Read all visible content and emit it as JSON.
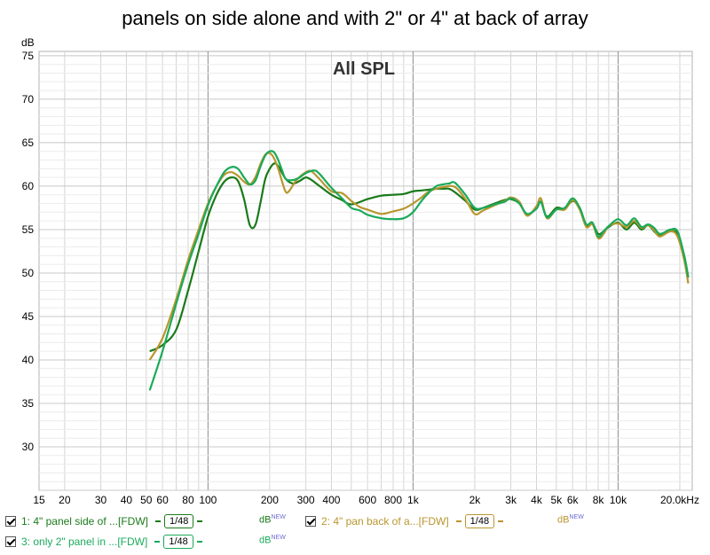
{
  "title": "panels on side alone and with 2\" or 4\" at back of array",
  "chart_data": {
    "type": "line",
    "inner_label": "All SPL",
    "ylabel": "dB",
    "xlabel": "",
    "x_scale": "log",
    "xlim": [
      15,
      23000
    ],
    "ylim": [
      25,
      75.5
    ],
    "y_ticks": [
      "75",
      "70",
      "65",
      "60",
      "55",
      "50",
      "45",
      "40",
      "35",
      "30"
    ],
    "x_ticks": [
      {
        "v": 15,
        "label": "15"
      },
      {
        "v": 20,
        "label": "20"
      },
      {
        "v": 30,
        "label": "30"
      },
      {
        "v": 40,
        "label": "40"
      },
      {
        "v": 50,
        "label": "50"
      },
      {
        "v": 60,
        "label": "60"
      },
      {
        "v": 80,
        "label": "80"
      },
      {
        "v": 100,
        "label": "100"
      },
      {
        "v": 200,
        "label": "200"
      },
      {
        "v": 300,
        "label": "300"
      },
      {
        "v": 400,
        "label": "400"
      },
      {
        "v": 600,
        "label": "600"
      },
      {
        "v": 800,
        "label": "800"
      },
      {
        "v": 1000,
        "label": "1k"
      },
      {
        "v": 2000,
        "label": "2k"
      },
      {
        "v": 3000,
        "label": "3k"
      },
      {
        "v": 4000,
        "label": "4k"
      },
      {
        "v": 5000,
        "label": "5k"
      },
      {
        "v": 6000,
        "label": "6k"
      },
      {
        "v": 8000,
        "label": "8k"
      },
      {
        "v": 10000,
        "label": "10k"
      },
      {
        "v": 20000,
        "label": "20.0kHz"
      }
    ],
    "series": [
      {
        "name": "1: 4\" panel side of ...[FDW]",
        "color": "#1a7a1a",
        "points": [
          [
            52,
            41
          ],
          [
            60,
            41.7
          ],
          [
            70,
            43.5
          ],
          [
            80,
            48
          ],
          [
            90,
            52.5
          ],
          [
            100,
            56.5
          ],
          [
            110,
            59
          ],
          [
            120,
            60.5
          ],
          [
            130,
            61
          ],
          [
            140,
            60.6
          ],
          [
            150,
            58.5
          ],
          [
            160,
            55.5
          ],
          [
            170,
            55.5
          ],
          [
            180,
            58
          ],
          [
            190,
            60.8
          ],
          [
            200,
            62
          ],
          [
            210,
            62.6
          ],
          [
            220,
            62.3
          ],
          [
            240,
            60.8
          ],
          [
            260,
            60.3
          ],
          [
            280,
            60.6
          ],
          [
            300,
            61
          ],
          [
            320,
            60.7
          ],
          [
            350,
            60
          ],
          [
            400,
            59
          ],
          [
            450,
            58.4
          ],
          [
            500,
            57.9
          ],
          [
            600,
            58.5
          ],
          [
            700,
            58.9
          ],
          [
            800,
            59
          ],
          [
            900,
            59.1
          ],
          [
            1000,
            59.4
          ],
          [
            1100,
            59.5
          ],
          [
            1200,
            59.6
          ],
          [
            1300,
            59.7
          ],
          [
            1400,
            59.7
          ],
          [
            1500,
            59.7
          ],
          [
            1600,
            59.3
          ],
          [
            1800,
            58.3
          ],
          [
            2000,
            57.3
          ],
          [
            2200,
            57.5
          ],
          [
            2500,
            58
          ],
          [
            2800,
            58.4
          ],
          [
            3000,
            58.5
          ],
          [
            3300,
            58
          ],
          [
            3600,
            56.7
          ],
          [
            4000,
            57.5
          ],
          [
            4200,
            58.2
          ],
          [
            4500,
            56.5
          ],
          [
            5000,
            57.5
          ],
          [
            5500,
            57.4
          ],
          [
            6000,
            58.3
          ],
          [
            6500,
            57.5
          ],
          [
            7000,
            55.5
          ],
          [
            7500,
            55.7
          ],
          [
            8000,
            54.5
          ],
          [
            8500,
            54.8
          ],
          [
            9000,
            55.3
          ],
          [
            10000,
            55.8
          ],
          [
            11000,
            55
          ],
          [
            12000,
            55.8
          ],
          [
            13000,
            55
          ],
          [
            14000,
            55.5
          ],
          [
            15000,
            54.8
          ],
          [
            16000,
            54.3
          ],
          [
            18000,
            54.8
          ],
          [
            19500,
            54.5
          ],
          [
            21000,
            52
          ],
          [
            22000,
            49.5
          ]
        ]
      },
      {
        "name": "2: 4\" pan back of a...[FDW]",
        "color": "#b8962e",
        "points": [
          [
            52,
            40
          ],
          [
            60,
            42.5
          ],
          [
            70,
            47
          ],
          [
            80,
            51.5
          ],
          [
            90,
            55
          ],
          [
            100,
            58
          ],
          [
            110,
            60
          ],
          [
            120,
            61.3
          ],
          [
            130,
            61.6
          ],
          [
            140,
            61.2
          ],
          [
            150,
            60.5
          ],
          [
            160,
            60.2
          ],
          [
            170,
            61
          ],
          [
            180,
            62.5
          ],
          [
            190,
            63.6
          ],
          [
            200,
            63.8
          ],
          [
            210,
            63.2
          ],
          [
            220,
            62
          ],
          [
            230,
            60.5
          ],
          [
            240,
            59.3
          ],
          [
            250,
            59.5
          ],
          [
            270,
            60.7
          ],
          [
            300,
            61.6
          ],
          [
            320,
            61.7
          ],
          [
            350,
            60.8
          ],
          [
            400,
            59.4
          ],
          [
            450,
            59.2
          ],
          [
            500,
            58.3
          ],
          [
            550,
            57.6
          ],
          [
            600,
            57.3
          ],
          [
            700,
            56.8
          ],
          [
            800,
            57.1
          ],
          [
            900,
            57.4
          ],
          [
            1000,
            58
          ],
          [
            1100,
            58.7
          ],
          [
            1200,
            59.4
          ],
          [
            1400,
            59.9
          ],
          [
            1600,
            59.9
          ],
          [
            1800,
            58.5
          ],
          [
            2000,
            56.8
          ],
          [
            2200,
            57.2
          ],
          [
            2500,
            57.8
          ],
          [
            2800,
            58.3
          ],
          [
            3000,
            58.7
          ],
          [
            3300,
            58.2
          ],
          [
            3600,
            56.6
          ],
          [
            4000,
            57.7
          ],
          [
            4200,
            58.6
          ],
          [
            4500,
            56.3
          ],
          [
            5000,
            57.3
          ],
          [
            5500,
            57.3
          ],
          [
            6000,
            58.4
          ],
          [
            6500,
            57.3
          ],
          [
            7000,
            55.3
          ],
          [
            7500,
            55.6
          ],
          [
            8000,
            54
          ],
          [
            8500,
            54.5
          ],
          [
            9000,
            55.4
          ],
          [
            10000,
            55.7
          ],
          [
            11000,
            55.3
          ],
          [
            12000,
            56
          ],
          [
            13000,
            55.2
          ],
          [
            14000,
            55.5
          ],
          [
            15000,
            54.9
          ],
          [
            16000,
            54.2
          ],
          [
            18000,
            54.8
          ],
          [
            19500,
            54.2
          ],
          [
            21000,
            51.5
          ],
          [
            22000,
            48.8
          ]
        ]
      },
      {
        "name": "3: only 2\" panel in ...[FDW]",
        "color": "#1aaa5a",
        "points": [
          [
            52,
            36.5
          ],
          [
            60,
            41
          ],
          [
            70,
            46.5
          ],
          [
            80,
            51
          ],
          [
            90,
            54.5
          ],
          [
            100,
            57.8
          ],
          [
            110,
            60
          ],
          [
            120,
            61.6
          ],
          [
            130,
            62.2
          ],
          [
            140,
            62
          ],
          [
            150,
            61
          ],
          [
            160,
            60.2
          ],
          [
            170,
            60.6
          ],
          [
            180,
            62.2
          ],
          [
            190,
            63.5
          ],
          [
            200,
            64
          ],
          [
            210,
            63.9
          ],
          [
            220,
            63
          ],
          [
            230,
            61.8
          ],
          [
            240,
            60.8
          ],
          [
            260,
            60.7
          ],
          [
            280,
            61
          ],
          [
            300,
            61.5
          ],
          [
            330,
            61.8
          ],
          [
            350,
            61.4
          ],
          [
            400,
            59.8
          ],
          [
            450,
            58.6
          ],
          [
            500,
            57.5
          ],
          [
            550,
            57.2
          ],
          [
            600,
            56.7
          ],
          [
            700,
            56.3
          ],
          [
            800,
            56.2
          ],
          [
            900,
            56.3
          ],
          [
            1000,
            57
          ],
          [
            1100,
            58.3
          ],
          [
            1200,
            59.3
          ],
          [
            1300,
            60
          ],
          [
            1400,
            60.2
          ],
          [
            1500,
            60.3
          ],
          [
            1600,
            60.4
          ],
          [
            1800,
            59
          ],
          [
            2000,
            57.5
          ],
          [
            2200,
            57.5
          ],
          [
            2500,
            57.9
          ],
          [
            2800,
            58.2
          ],
          [
            3000,
            58.6
          ],
          [
            3300,
            58
          ],
          [
            3600,
            56.8
          ],
          [
            4000,
            57.4
          ],
          [
            4200,
            58.2
          ],
          [
            4500,
            56.4
          ],
          [
            5000,
            57.3
          ],
          [
            5500,
            57.5
          ],
          [
            6000,
            58.6
          ],
          [
            6500,
            57.5
          ],
          [
            7000,
            55.6
          ],
          [
            7500,
            55.8
          ],
          [
            8000,
            54.2
          ],
          [
            8500,
            54.8
          ],
          [
            9000,
            55.4
          ],
          [
            10000,
            56.2
          ],
          [
            11000,
            55.5
          ],
          [
            12000,
            56.3
          ],
          [
            13000,
            55.3
          ],
          [
            14000,
            55.6
          ],
          [
            15000,
            55.2
          ],
          [
            16000,
            54.5
          ],
          [
            18000,
            55
          ],
          [
            19500,
            54.8
          ],
          [
            21000,
            52
          ],
          [
            22000,
            49.5
          ]
        ]
      }
    ]
  },
  "legend": {
    "series1": {
      "label": "1: 4\" panel side of ...[FDW]",
      "smoothing": "1/48",
      "unit": "dB",
      "badge": "NEW"
    },
    "series2": {
      "label": "2: 4\" pan back of a...[FDW]",
      "smoothing": "1/48",
      "unit": "dB",
      "badge": "NEW"
    },
    "series3": {
      "label": "3: only 2\" panel in ...[FDW]",
      "smoothing": "1/48",
      "unit": "dB",
      "badge": "NEW"
    }
  }
}
